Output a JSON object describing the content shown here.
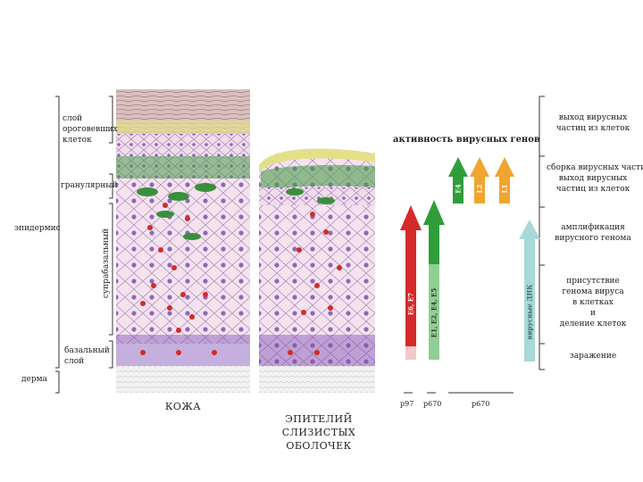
{
  "left_labels": {
    "stratum_corneum": [
      "слой",
      "ороговевших",
      "клеток"
    ],
    "granular": "гранулярный",
    "suprabasal": "супрабазальный",
    "basal": [
      "базальный",
      "слой"
    ],
    "epidermis": "эпидермис",
    "dermis": "дерма"
  },
  "captions": {
    "skin": "КОЖА",
    "mucosa": [
      "ЭПИТЕЛИЙ",
      "СЛИЗИСТЫХ ОБОЛОЧЕК"
    ]
  },
  "gene_activity_title": "активность вирусных генов",
  "arrows": [
    {
      "label": "E6, E7",
      "color": "#d42a2a"
    },
    {
      "label": "E1, E2, E4, E5",
      "color": "#2f9e3a"
    },
    {
      "label": "E4",
      "color": "#2f9e3a"
    },
    {
      "label": "L2",
      "color": "#f0a530"
    },
    {
      "label": "L1",
      "color": "#f0a530"
    },
    {
      "label": "вирусные ДНК",
      "color": "#a8d8d8"
    }
  ],
  "promoters": [
    "p97",
    "p670",
    "p670"
  ],
  "right_labels": {
    "release": [
      "выход вирусных",
      "частиц из клеток"
    ],
    "assembly": [
      "сборка вирусных частиц",
      "выход вирусных",
      "частиц из клеток"
    ],
    "amplification": [
      "амплификация",
      "вирусного генома"
    ],
    "presence": [
      "присутствие",
      "генома вируса",
      "в клетках",
      "и",
      "деление клеток"
    ],
    "infection": "заражение"
  }
}
